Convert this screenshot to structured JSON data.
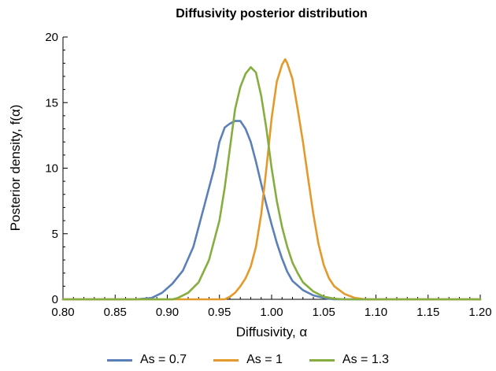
{
  "chart_data": {
    "type": "line",
    "title": "Diffusivity posterior distribution",
    "xlabel": "Diffusivity, α",
    "ylabel": "Posterior density, f(α)",
    "xlim": [
      0.8,
      1.2
    ],
    "ylim": [
      0,
      20
    ],
    "xticks": [
      "0.80",
      "0.85",
      "0.90",
      "0.95",
      "1.00",
      "1.05",
      "1.10",
      "1.15",
      "1.20"
    ],
    "yticks": [
      "0",
      "5",
      "10",
      "15",
      "20"
    ],
    "grid": false,
    "legend_position": "bottom",
    "series": [
      {
        "name": "As = 0.7",
        "color": "#5b7fb8",
        "points": [
          [
            0.8,
            0.0
          ],
          [
            0.87,
            0.0
          ],
          [
            0.885,
            0.1
          ],
          [
            0.895,
            0.5
          ],
          [
            0.905,
            1.2
          ],
          [
            0.915,
            2.2
          ],
          [
            0.925,
            4.0
          ],
          [
            0.935,
            7.0
          ],
          [
            0.945,
            10.0
          ],
          [
            0.95,
            12.0
          ],
          [
            0.955,
            13.1
          ],
          [
            0.96,
            13.4
          ],
          [
            0.965,
            13.6
          ],
          [
            0.97,
            13.6
          ],
          [
            0.975,
            13.0
          ],
          [
            0.98,
            12.0
          ],
          [
            0.985,
            10.5
          ],
          [
            0.99,
            8.8
          ],
          [
            0.995,
            7.2
          ],
          [
            1.0,
            5.7
          ],
          [
            1.005,
            4.3
          ],
          [
            1.01,
            3.1
          ],
          [
            1.015,
            2.1
          ],
          [
            1.02,
            1.4
          ],
          [
            1.03,
            0.7
          ],
          [
            1.04,
            0.3
          ],
          [
            1.05,
            0.1
          ],
          [
            1.06,
            0.0
          ],
          [
            1.2,
            0.0
          ]
        ]
      },
      {
        "name": "As = 1",
        "color": "#e39a2a",
        "points": [
          [
            0.8,
            0.0
          ],
          [
            0.955,
            0.0
          ],
          [
            0.96,
            0.2
          ],
          [
            0.965,
            0.5
          ],
          [
            0.97,
            1.0
          ],
          [
            0.975,
            1.6
          ],
          [
            0.98,
            2.5
          ],
          [
            0.985,
            4.0
          ],
          [
            0.99,
            6.5
          ],
          [
            0.995,
            10.0
          ],
          [
            1.0,
            13.8
          ],
          [
            1.005,
            16.6
          ],
          [
            1.01,
            17.9
          ],
          [
            1.013,
            18.3
          ],
          [
            1.015,
            18.0
          ],
          [
            1.02,
            16.8
          ],
          [
            1.025,
            14.5
          ],
          [
            1.03,
            12.0
          ],
          [
            1.035,
            9.2
          ],
          [
            1.04,
            6.5
          ],
          [
            1.045,
            4.2
          ],
          [
            1.05,
            2.6
          ],
          [
            1.055,
            1.6
          ],
          [
            1.06,
            1.0
          ],
          [
            1.07,
            0.4
          ],
          [
            1.08,
            0.1
          ],
          [
            1.09,
            0.0
          ],
          [
            1.2,
            0.0
          ]
        ]
      },
      {
        "name": "As = 1.3",
        "color": "#86ad3f",
        "points": [
          [
            0.8,
            0.0
          ],
          [
            0.905,
            0.0
          ],
          [
            0.91,
            0.1
          ],
          [
            0.92,
            0.5
          ],
          [
            0.93,
            1.3
          ],
          [
            0.94,
            3.0
          ],
          [
            0.95,
            6.0
          ],
          [
            0.955,
            8.5
          ],
          [
            0.96,
            11.5
          ],
          [
            0.965,
            14.5
          ],
          [
            0.97,
            16.2
          ],
          [
            0.975,
            17.2
          ],
          [
            0.98,
            17.7
          ],
          [
            0.985,
            17.3
          ],
          [
            0.99,
            15.5
          ],
          [
            0.995,
            13.0
          ],
          [
            1.0,
            10.0
          ],
          [
            1.005,
            7.5
          ],
          [
            1.01,
            5.5
          ],
          [
            1.015,
            4.0
          ],
          [
            1.02,
            2.8
          ],
          [
            1.025,
            2.0
          ],
          [
            1.03,
            1.3
          ],
          [
            1.04,
            0.6
          ],
          [
            1.05,
            0.2
          ],
          [
            1.06,
            0.05
          ],
          [
            1.07,
            0.0
          ],
          [
            1.2,
            0.0
          ]
        ]
      }
    ]
  }
}
